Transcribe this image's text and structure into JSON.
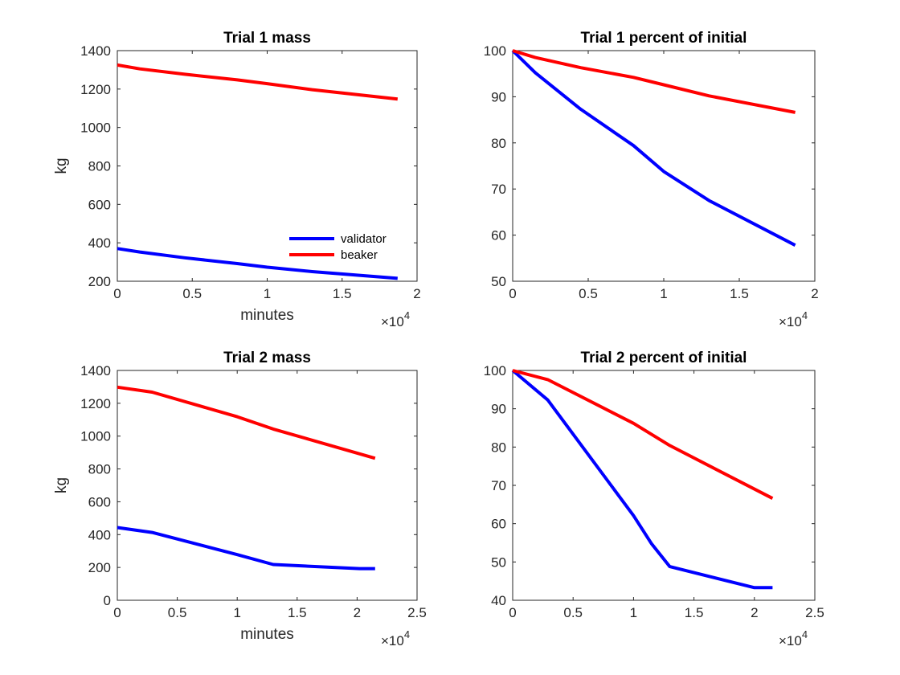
{
  "chart_data": [
    {
      "type": "line",
      "title": "Trial 1 mass",
      "xlabel": "minutes",
      "ylabel": "kg",
      "xlim": [
        0,
        20000
      ],
      "ylim": [
        200,
        1400
      ],
      "xticks": [
        0,
        5000,
        10000,
        15000,
        20000
      ],
      "xtick_labels": [
        "0",
        "0.5",
        "1",
        "1.5",
        "2"
      ],
      "yticks": [
        200,
        400,
        600,
        800,
        1000,
        1200,
        1400
      ],
      "ytick_labels": [
        "200",
        "400",
        "600",
        "800",
        "1000",
        "1200",
        "1400"
      ],
      "x_exponent_base": "×10",
      "x_exponent_power": "4",
      "legend": "bottom-right",
      "grid": false,
      "series": [
        {
          "name": "validator",
          "color": "#0000ff",
          "x": [
            0,
            1500,
            4500,
            8000,
            10000,
            13000,
            18700
          ],
          "y": [
            370,
            352,
            322,
            292,
            273,
            250,
            215
          ]
        },
        {
          "name": "beaker",
          "color": "#ff0000",
          "x": [
            0,
            1500,
            4500,
            8000,
            10000,
            13000,
            18700
          ],
          "y": [
            1325,
            1305,
            1277,
            1248,
            1228,
            1197,
            1148
          ]
        }
      ]
    },
    {
      "type": "line",
      "title": "Trial 1 percent of initial",
      "xlabel": "",
      "ylabel": "",
      "xlim": [
        0,
        20000
      ],
      "ylim": [
        50,
        100
      ],
      "xticks": [
        0,
        5000,
        10000,
        15000,
        20000
      ],
      "xtick_labels": [
        "0",
        "0.5",
        "1",
        "1.5",
        "2"
      ],
      "yticks": [
        50,
        60,
        70,
        80,
        90,
        100
      ],
      "ytick_labels": [
        "50",
        "60",
        "70",
        "80",
        "90",
        "100"
      ],
      "x_exponent_base": "×10",
      "x_exponent_power": "4",
      "grid": false,
      "series": [
        {
          "color": "#0000ff",
          "x": [
            0,
            1500,
            4500,
            8000,
            10000,
            13000,
            18700
          ],
          "y": [
            100,
            95.2,
            87.3,
            79.4,
            73.8,
            67.5,
            57.8
          ]
        },
        {
          "color": "#ff0000",
          "x": [
            0,
            1500,
            4500,
            8000,
            10000,
            13000,
            18700
          ],
          "y": [
            100,
            98.5,
            96.3,
            94.2,
            92.6,
            90.2,
            86.6
          ]
        }
      ]
    },
    {
      "type": "line",
      "title": "Trial 2 mass",
      "xlabel": "minutes",
      "ylabel": "kg",
      "xlim": [
        0,
        25000
      ],
      "ylim": [
        0,
        1400
      ],
      "xticks": [
        0,
        5000,
        10000,
        15000,
        20000,
        25000
      ],
      "xtick_labels": [
        "0",
        "0.5",
        "1",
        "1.5",
        "2",
        "2.5"
      ],
      "yticks": [
        0,
        200,
        400,
        600,
        800,
        1000,
        1200,
        1400
      ],
      "ytick_labels": [
        "0",
        "200",
        "400",
        "600",
        "800",
        "1000",
        "1200",
        "1400"
      ],
      "x_exponent_base": "×10",
      "x_exponent_power": "4",
      "grid": false,
      "series": [
        {
          "color": "#0000ff",
          "x": [
            0,
            2900,
            10000,
            13000,
            20200,
            21500
          ],
          "y": [
            443,
            413,
            278,
            218,
            193,
            193
          ]
        },
        {
          "color": "#ff0000",
          "x": [
            0,
            2900,
            10000,
            13000,
            21500
          ],
          "y": [
            1298,
            1268,
            1118,
            1043,
            865
          ]
        }
      ]
    },
    {
      "type": "line",
      "title": "Trial 2 percent of initial",
      "xlabel": "",
      "ylabel": "",
      "xlim": [
        0,
        25000
      ],
      "ylim": [
        40,
        100
      ],
      "xticks": [
        0,
        5000,
        10000,
        15000,
        20000,
        25000
      ],
      "xtick_labels": [
        "0",
        "0.5",
        "1",
        "1.5",
        "2",
        "2.5"
      ],
      "yticks": [
        40,
        50,
        60,
        70,
        80,
        90,
        100
      ],
      "ytick_labels": [
        "40",
        "50",
        "60",
        "70",
        "80",
        "90",
        "100"
      ],
      "x_exponent_base": "×10",
      "x_exponent_power": "4",
      "grid": false,
      "series": [
        {
          "color": "#0000ff",
          "x": [
            0,
            2900,
            10000,
            11500,
            13000,
            20000,
            21500
          ],
          "y": [
            100,
            92.3,
            62.1,
            54.7,
            48.8,
            43.3,
            43.3
          ]
        },
        {
          "color": "#ff0000",
          "x": [
            0,
            2900,
            10000,
            13000,
            21500
          ],
          "y": [
            100,
            97.6,
            86.2,
            80.4,
            66.6
          ]
        }
      ]
    }
  ]
}
